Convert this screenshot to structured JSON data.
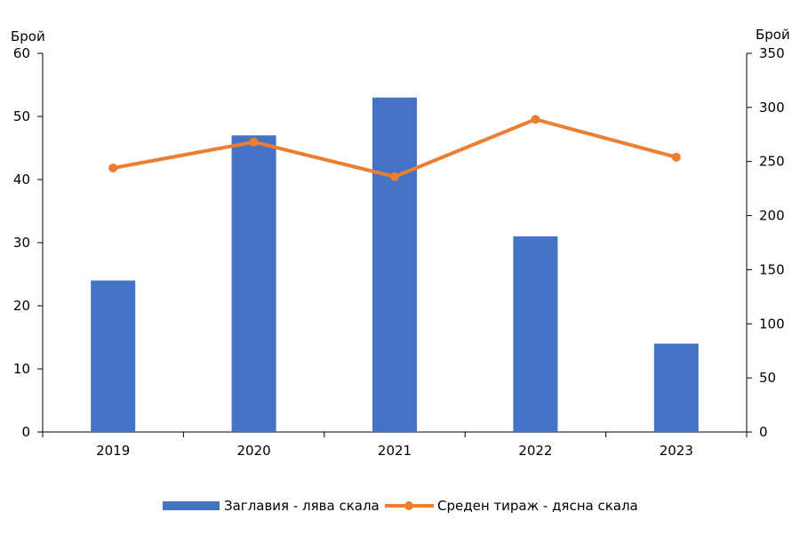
{
  "chart_data": {
    "type": "bar",
    "categories": [
      "2019",
      "2020",
      "2021",
      "2022",
      "2023"
    ],
    "series": [
      {
        "name": "Заглавия - лява скала",
        "type": "bar",
        "axis": "left",
        "values": [
          24,
          47,
          53,
          31,
          14
        ],
        "color": "#4472C4"
      },
      {
        "name": "Среден тираж - дясна скала",
        "type": "line",
        "axis": "right",
        "values": [
          244,
          268,
          236,
          289,
          254
        ],
        "color": "#ED7D31"
      }
    ],
    "y_left": {
      "label": "Брой",
      "ylim": [
        0,
        60
      ],
      "ticks": [
        0,
        10,
        20,
        30,
        40,
        50,
        60
      ]
    },
    "y_right": {
      "label": "Брой",
      "ylim": [
        0,
        350
      ],
      "ticks": [
        0,
        50,
        100,
        150,
        200,
        250,
        300,
        350
      ]
    },
    "grid": false,
    "legend_position": "bottom"
  }
}
